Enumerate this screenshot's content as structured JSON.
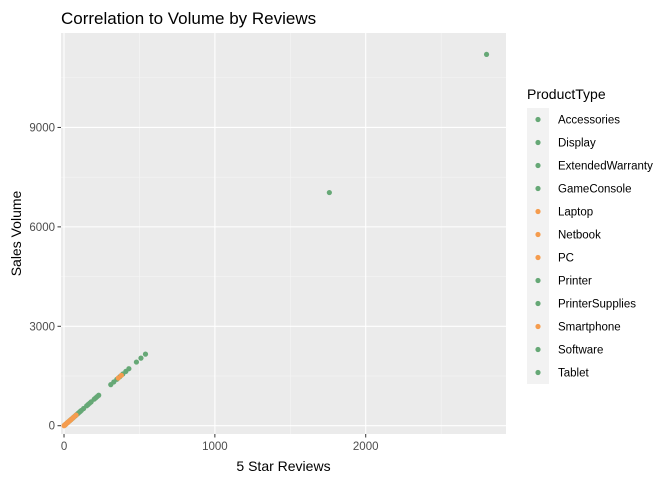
{
  "chart_data": {
    "type": "scatter",
    "title": "Correlation to Volume by Reviews",
    "xlabel": "5 Star Reviews",
    "ylabel": "Sales Volume",
    "xlim": [
      -20,
      2930
    ],
    "ylim": [
      -250,
      11850
    ],
    "x_ticks": [
      0,
      1000,
      2000
    ],
    "y_ticks": [
      0,
      3000,
      6000,
      9000
    ],
    "x_tick_labels": [
      "0",
      "1000",
      "2000"
    ],
    "y_tick_labels": [
      "0",
      "3000",
      "6000",
      "9000"
    ],
    "grid": true,
    "legend": {
      "title": "ProductType",
      "position": "right",
      "entries": [
        {
          "name": "Accessories",
          "color": "#66a876"
        },
        {
          "name": "Display",
          "color": "#66a876"
        },
        {
          "name": "ExtendedWarranty",
          "color": "#66a876"
        },
        {
          "name": "GameConsole",
          "color": "#66a876"
        },
        {
          "name": "Laptop",
          "color": "#f59c4e"
        },
        {
          "name": "Netbook",
          "color": "#f59c4e"
        },
        {
          "name": "PC",
          "color": "#f59c4e"
        },
        {
          "name": "Printer",
          "color": "#66a876"
        },
        {
          "name": "PrinterSupplies",
          "color": "#66a876"
        },
        {
          "name": "Smartphone",
          "color": "#f59c4e"
        },
        {
          "name": "Software",
          "color": "#66a876"
        },
        {
          "name": "Tablet",
          "color": "#66a876"
        }
      ]
    },
    "series": [
      {
        "color": "#66a876",
        "points": [
          [
            2,
            8
          ],
          [
            5,
            20
          ],
          [
            8,
            32
          ],
          [
            12,
            48
          ],
          [
            18,
            72
          ],
          [
            25,
            100
          ],
          [
            32,
            128
          ],
          [
            40,
            160
          ],
          [
            48,
            192
          ],
          [
            55,
            220
          ],
          [
            62,
            248
          ],
          [
            70,
            280
          ],
          [
            78,
            312
          ],
          [
            85,
            340
          ],
          [
            92,
            368
          ],
          [
            100,
            400
          ],
          [
            108,
            432
          ],
          [
            115,
            460
          ],
          [
            130,
            520
          ],
          [
            150,
            600
          ],
          [
            160,
            640
          ],
          [
            170,
            680
          ],
          [
            180,
            720
          ],
          [
            200,
            800
          ],
          [
            210,
            840
          ],
          [
            220,
            880
          ],
          [
            230,
            920
          ],
          [
            310,
            1240
          ],
          [
            330,
            1320
          ],
          [
            350,
            1400
          ],
          [
            370,
            1480
          ],
          [
            390,
            1560
          ],
          [
            410,
            1640
          ],
          [
            430,
            1720
          ],
          [
            480,
            1920
          ],
          [
            510,
            2040
          ],
          [
            540,
            2160
          ],
          [
            1759,
            7036
          ],
          [
            2801,
            11204
          ]
        ]
      },
      {
        "color": "#f59c4e",
        "points": [
          [
            0,
            0
          ],
          [
            3,
            12
          ],
          [
            6,
            24
          ],
          [
            10,
            40
          ],
          [
            15,
            60
          ],
          [
            22,
            88
          ],
          [
            28,
            112
          ],
          [
            35,
            140
          ],
          [
            45,
            180
          ],
          [
            58,
            232
          ],
          [
            65,
            260
          ],
          [
            80,
            320
          ],
          [
            360,
            1440
          ],
          [
            380,
            1520
          ]
        ]
      }
    ]
  }
}
